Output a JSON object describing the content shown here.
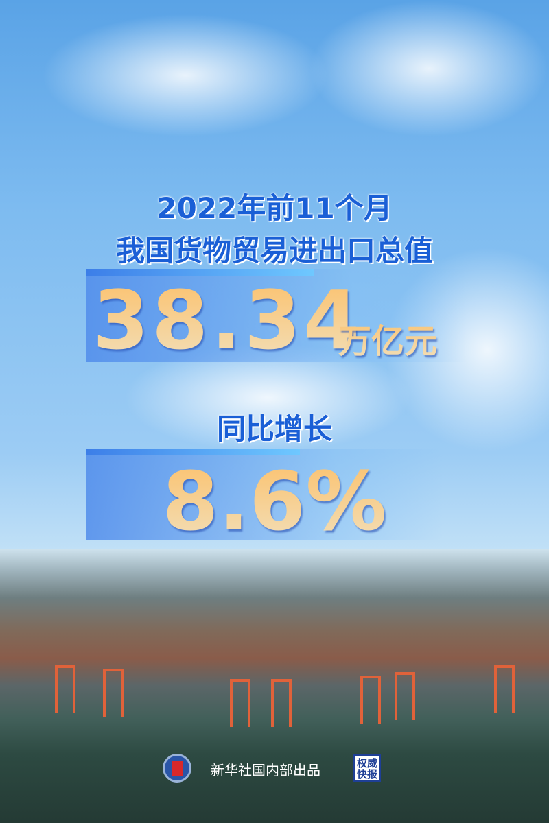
{
  "headline": {
    "line1": "2022年前11个月",
    "line2": "我国货物贸易进出口总值"
  },
  "total": {
    "value": "38.34",
    "unit": "万亿元"
  },
  "growth": {
    "label": "同比增长",
    "value": "8.6%"
  },
  "footer": {
    "organization": "新华社国内部出品",
    "seal_text": "权威快报",
    "logo": "xinhua-logo"
  },
  "colors": {
    "title": "#1a5fd6",
    "number_top": "#fcc06a",
    "number_bottom": "#f1e0bc",
    "band": "#508ceb"
  }
}
